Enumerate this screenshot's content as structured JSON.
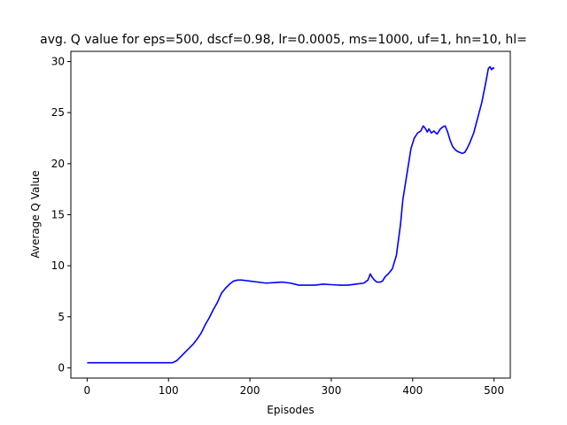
{
  "chart_data": {
    "type": "line",
    "title": "avg. Q value for eps=500, dscf=0.98, lr=0.0005, ms=1000, uf=1, hn=10, hl=",
    "xlabel": "Episodes",
    "ylabel": "Average Q Value",
    "xlim": [
      -20,
      520
    ],
    "ylim": [
      -1,
      31
    ],
    "xticks": [
      0,
      100,
      200,
      300,
      400,
      500
    ],
    "yticks": [
      0,
      5,
      10,
      15,
      20,
      25,
      30
    ],
    "grid": false,
    "line_color": "#0000ff",
    "series": [
      {
        "x": [
          0,
          20,
          40,
          60,
          80,
          100,
          105,
          110,
          115,
          120,
          125,
          130,
          135,
          140,
          145,
          150,
          155,
          160,
          165,
          170,
          175,
          180,
          185,
          190,
          195,
          200,
          210,
          220,
          230,
          240,
          250,
          260,
          270,
          280,
          290,
          300,
          310,
          320,
          330,
          340,
          345,
          348,
          350,
          353,
          356,
          360,
          363,
          366,
          370,
          375,
          380,
          385,
          388,
          392,
          395,
          398,
          402,
          406,
          410,
          413,
          416,
          418,
          420,
          423,
          426,
          430,
          434,
          437,
          440,
          443,
          446,
          449,
          452,
          455,
          458,
          461,
          464,
          467,
          470,
          475,
          480,
          485,
          490,
          493,
          495,
          497,
          499,
          500
        ],
        "values": [
          0.5,
          0.5,
          0.5,
          0.5,
          0.5,
          0.5,
          0.5,
          0.7,
          1.1,
          1.5,
          1.9,
          2.3,
          2.8,
          3.4,
          4.2,
          4.9,
          5.7,
          6.4,
          7.3,
          7.8,
          8.2,
          8.5,
          8.6,
          8.6,
          8.55,
          8.5,
          8.4,
          8.3,
          8.35,
          8.4,
          8.3,
          8.1,
          8.1,
          8.1,
          8.2,
          8.15,
          8.1,
          8.1,
          8.2,
          8.3,
          8.6,
          9.2,
          8.9,
          8.6,
          8.4,
          8.4,
          8.5,
          8.9,
          9.2,
          9.7,
          11.0,
          14.0,
          16.5,
          18.5,
          20.0,
          21.5,
          22.5,
          23.0,
          23.2,
          23.7,
          23.4,
          23.1,
          23.4,
          23.0,
          23.2,
          22.9,
          23.4,
          23.6,
          23.7,
          23.1,
          22.3,
          21.7,
          21.4,
          21.2,
          21.1,
          21.0,
          21.1,
          21.5,
          22.0,
          23.0,
          24.5,
          26.0,
          28.0,
          29.3,
          29.5,
          29.2,
          29.4,
          29.3
        ]
      }
    ]
  }
}
